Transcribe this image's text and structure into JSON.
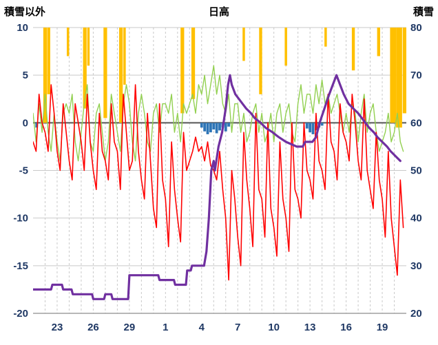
{
  "chart_data": {
    "type": "line",
    "title": "日高",
    "left_axis": {
      "title": "積雪以外",
      "min": -20,
      "max": 10,
      "ticks": [
        10,
        5,
        0,
        -5,
        -10,
        -15,
        -20
      ]
    },
    "right_axis": {
      "title": "積雪",
      "min": 20,
      "max": 80,
      "ticks": [
        80,
        70,
        60,
        50,
        40,
        30,
        20
      ]
    },
    "x_axis": {
      "min": 0,
      "max": 31,
      "minor_grid_every_days": 1,
      "tick_days": [
        2,
        5,
        8,
        11,
        14,
        17,
        20,
        23,
        26,
        29
      ],
      "tick_labels": [
        "23",
        "26",
        "29",
        "1",
        "4",
        "7",
        "10",
        "13",
        "16",
        "19"
      ]
    },
    "colors": {
      "grid": "#C9C9C9",
      "zero_line": "#6E6E6E",
      "axis_line": "#8C8C8C",
      "tick_text": "#1F3864",
      "red_line": "#FF0000",
      "green_line": "#92D050",
      "purple_line": "#7030A0",
      "orange_bars": "#FFC000",
      "blue_bars": "#2E75B6"
    },
    "series": {
      "red_line": {
        "type": "line",
        "axis": "left",
        "width": 1.6,
        "start_day": 0,
        "step_days": 0.25,
        "values": [
          -2,
          -3,
          3,
          0,
          -1,
          -3,
          4,
          1,
          -3,
          -5,
          2,
          -1,
          -4,
          -6,
          2,
          0,
          -2,
          -5,
          3,
          -2,
          -5,
          -7,
          1,
          -3,
          -4,
          -6,
          2,
          -2,
          -3,
          -7,
          3,
          -1,
          -5,
          -4,
          4,
          -3,
          -6,
          -8,
          1,
          -4,
          -9,
          -11,
          2,
          -6,
          -8,
          -13,
          -2,
          -7,
          -10,
          -12.5,
          -1,
          -5,
          -4,
          -3,
          -1.5,
          -3,
          -2.5,
          -4,
          -2,
          -4.5,
          -5,
          -6,
          -3,
          -7,
          -10,
          -16.5,
          -5,
          -8,
          -12,
          -15,
          -1,
          -6,
          -9,
          -13,
          1,
          -7,
          -8,
          -12,
          0,
          -9,
          -11,
          -14,
          -2,
          -8,
          -10,
          -13.5,
          0,
          -7,
          -8,
          -10,
          0,
          -5,
          -6,
          -8,
          1,
          -4,
          -5,
          -7,
          3,
          -2,
          -3,
          -6,
          2,
          -1,
          -2,
          -4,
          3,
          0,
          -4,
          -6,
          2.5,
          -5,
          -7,
          -9,
          -1,
          -6,
          -8,
          -12,
          -3,
          -10,
          -13,
          -16,
          -6,
          -11
        ]
      },
      "green_line": {
        "type": "line",
        "axis": "left",
        "width": 1.4,
        "start_day": 0,
        "step_days": 0.25,
        "values": [
          1,
          -2,
          2,
          -1,
          3,
          -1,
          -3,
          1,
          -2,
          -4,
          1,
          2,
          1,
          3,
          -2,
          -4,
          -1,
          2,
          4,
          -2,
          -3,
          1,
          2,
          -1,
          -4,
          -2,
          3,
          1,
          -1,
          -3,
          2,
          4,
          2,
          -2,
          -4,
          1,
          3,
          1,
          -2,
          -3,
          1,
          2,
          -1,
          2,
          2,
          1,
          3,
          -1,
          1,
          -2,
          2,
          1,
          2,
          3,
          1,
          4,
          3,
          5,
          2,
          4,
          6,
          3,
          5,
          2,
          1,
          3,
          -1,
          2,
          2,
          -1,
          1,
          -2,
          -1,
          1,
          2,
          -1,
          1,
          -2,
          -1,
          1,
          -2,
          1,
          2,
          -1,
          1,
          2,
          -1,
          -2,
          2,
          4,
          1,
          3,
          3,
          1,
          4,
          2,
          4.5,
          2,
          3,
          1,
          2,
          3,
          1,
          -1,
          1,
          -1,
          2,
          1,
          -2,
          1,
          3,
          -1,
          1,
          2,
          -1,
          -3,
          -2,
          -1,
          1,
          -2,
          -1,
          1,
          -2,
          -3
        ]
      },
      "purple_line": {
        "type": "line",
        "axis": "right",
        "width": 3.2,
        "points": [
          [
            0,
            25
          ],
          [
            1.5,
            25
          ],
          [
            1.6,
            26
          ],
          [
            2.4,
            26
          ],
          [
            2.5,
            25
          ],
          [
            3.2,
            25
          ],
          [
            3.3,
            24
          ],
          [
            4.9,
            24
          ],
          [
            5,
            23
          ],
          [
            5.9,
            23
          ],
          [
            6,
            24
          ],
          [
            6.5,
            24
          ],
          [
            6.6,
            23
          ],
          [
            7.9,
            23
          ],
          [
            8,
            28
          ],
          [
            10.4,
            28
          ],
          [
            10.5,
            27
          ],
          [
            11.7,
            27
          ],
          [
            11.8,
            26
          ],
          [
            12.7,
            26
          ],
          [
            12.8,
            29
          ],
          [
            13.1,
            29
          ],
          [
            13.2,
            30
          ],
          [
            14.2,
            30
          ],
          [
            14.4,
            33
          ],
          [
            14.6,
            40
          ],
          [
            14.8,
            50
          ],
          [
            15,
            52
          ],
          [
            15.1,
            50
          ],
          [
            15.4,
            55
          ],
          [
            15.7,
            58
          ],
          [
            16,
            63
          ],
          [
            16.2,
            68
          ],
          [
            16.35,
            70
          ],
          [
            16.5,
            68
          ],
          [
            16.8,
            66
          ],
          [
            17.1,
            65
          ],
          [
            17.4,
            64
          ],
          [
            17.7,
            63
          ],
          [
            18.1,
            62
          ],
          [
            18.4,
            61
          ],
          [
            18.9,
            60
          ],
          [
            19.3,
            59
          ],
          [
            19.9,
            58
          ],
          [
            20.4,
            57
          ],
          [
            21,
            56
          ],
          [
            21.9,
            55
          ],
          [
            22.4,
            55
          ],
          [
            22.6,
            56
          ],
          [
            23.2,
            56
          ],
          [
            23.5,
            57
          ],
          [
            23.8,
            60
          ],
          [
            24.2,
            63
          ],
          [
            24.6,
            66
          ],
          [
            24.9,
            68
          ],
          [
            25.2,
            70
          ],
          [
            25.5,
            68
          ],
          [
            25.8,
            66
          ],
          [
            26.2,
            64
          ],
          [
            26.6,
            63
          ],
          [
            27,
            62
          ],
          [
            27.3,
            61
          ],
          [
            27.6,
            60
          ],
          [
            27.9,
            59
          ],
          [
            28.3,
            58
          ],
          [
            28.6,
            57
          ],
          [
            29,
            56
          ],
          [
            29.4,
            55
          ],
          [
            29.7,
            54
          ],
          [
            30.1,
            53
          ],
          [
            30.5,
            52
          ]
        ]
      },
      "orange_bars": {
        "type": "bar-from-top",
        "bars": [
          [
            1,
            10,
            0.3
          ],
          [
            1.3,
            7,
            0.25
          ],
          [
            2.9,
            3,
            0.2
          ],
          [
            4.3,
            8.5,
            0.3
          ],
          [
            4.6,
            4,
            0.2
          ],
          [
            6,
            9.5,
            0.3
          ],
          [
            7.3,
            10,
            0.3
          ],
          [
            7.6,
            6,
            0.2
          ],
          [
            12.4,
            9,
            0.3
          ],
          [
            13.3,
            7.5,
            0.3
          ],
          [
            17.5,
            3.5,
            0.2
          ],
          [
            18.9,
            7,
            0.25
          ],
          [
            21,
            4,
            0.2
          ],
          [
            24.3,
            2,
            0.2
          ],
          [
            26.6,
            4.5,
            0.25
          ],
          [
            28.7,
            3,
            0.25
          ],
          [
            29.9,
            10,
            0.5
          ],
          [
            30.4,
            10.5,
            0.5
          ],
          [
            30.9,
            9,
            0.4
          ]
        ]
      },
      "blue_bars": {
        "type": "bar-from-zero",
        "bar_width_days": 0.22,
        "bars": [
          [
            0.3,
            0.5
          ],
          [
            14,
            0.5
          ],
          [
            14.25,
            0.9
          ],
          [
            14.5,
            1.2
          ],
          [
            14.75,
            1
          ],
          [
            15,
            0.7
          ],
          [
            15.25,
            1.1
          ],
          [
            15.5,
            0.8
          ],
          [
            15.75,
            0.5
          ],
          [
            16,
            0.9
          ],
          [
            16.25,
            0.4
          ],
          [
            22.75,
            0.6
          ],
          [
            23,
            1
          ],
          [
            23.25,
            1.2
          ],
          [
            23.5,
            0.8
          ],
          [
            23.75,
            0.5
          ],
          [
            24,
            0.3
          ]
        ]
      }
    }
  }
}
